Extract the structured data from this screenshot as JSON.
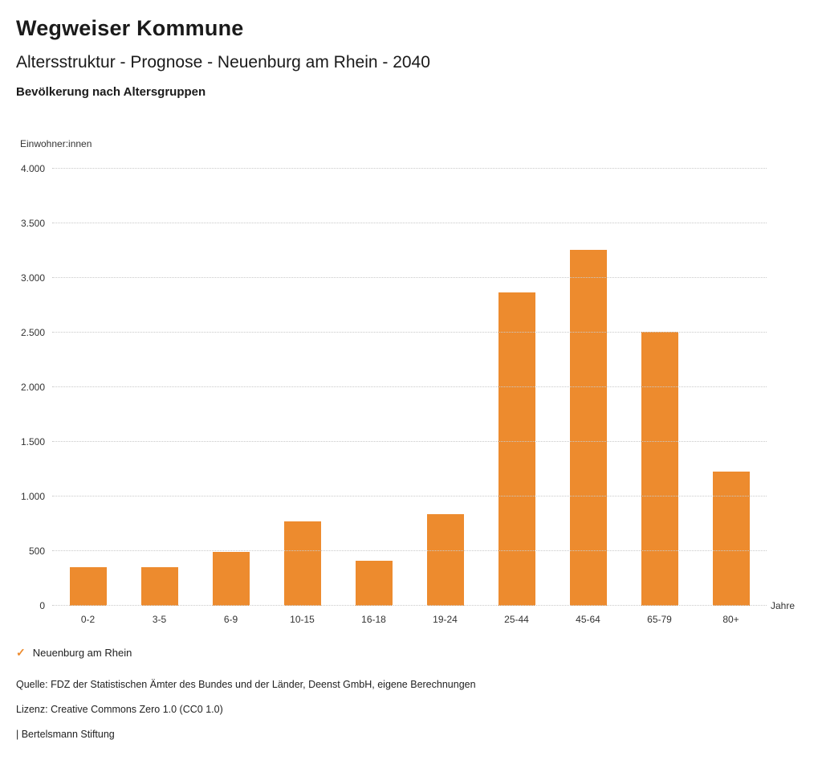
{
  "header": {
    "title": "Wegweiser Kommune",
    "subtitle": "Altersstruktur - Prognose - Neuenburg am Rhein - 2040",
    "section": "Bevölkerung nach Altersgruppen"
  },
  "chart_data": {
    "type": "bar",
    "title": "Bevölkerung nach Altersgruppen",
    "ylabel": "Einwohner:innen",
    "xlabel": "Jahre",
    "categories": [
      "0-2",
      "3-5",
      "6-9",
      "10-15",
      "16-18",
      "19-24",
      "25-44",
      "45-64",
      "65-79",
      "80+"
    ],
    "series": [
      {
        "name": "Neuenburg am Rhein",
        "values": [
          350,
          350,
          490,
          775,
          415,
          840,
          2870,
          3260,
          2510,
          1230
        ]
      }
    ],
    "ylim": [
      0,
      4000
    ],
    "ytick_values": [
      0,
      500,
      1000,
      1500,
      2000,
      2500,
      3000,
      3500,
      4000
    ],
    "ytick_labels": [
      "0",
      "500",
      "1.000",
      "1.500",
      "2.000",
      "2.500",
      "3.000",
      "3.500",
      "4.000"
    ],
    "grid": "horizontal dotted",
    "bar_color": "#ED8B2E",
    "legend_position": "bottom-left"
  },
  "legend": {
    "check_icon": "✓",
    "label": "Neuenburg am Rhein",
    "check_color": "#ED8B2E"
  },
  "footer": {
    "source": "Quelle: FDZ der Statistischen Ämter des Bundes und der Länder, Deenst GmbH, eigene Berechnungen",
    "license": "Lizenz: Creative Commons Zero 1.0 (CC0 1.0)",
    "attribution": "| Bertelsmann Stiftung"
  }
}
